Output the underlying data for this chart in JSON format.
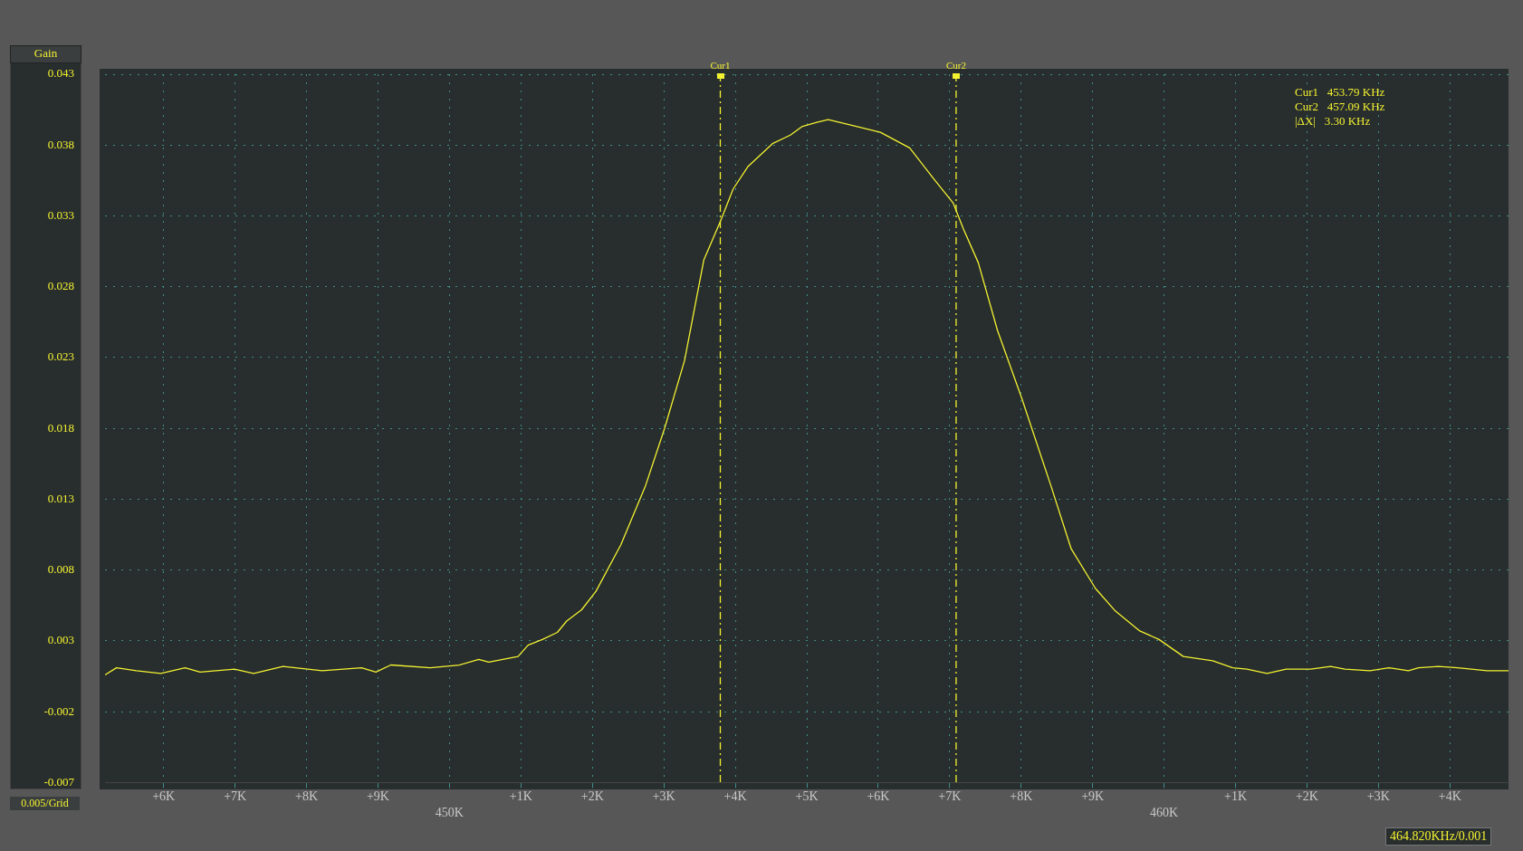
{
  "chart_data": {
    "type": "line",
    "ylabel": "Gain",
    "x": [
      445180,
      445340,
      445620,
      445960,
      446300,
      446510,
      446990,
      447260,
      447670,
      448220,
      448770,
      448970,
      449180,
      449730,
      450140,
      450410,
      450550,
      450960,
      451100,
      451300,
      451510,
      451640,
      451850,
      452050,
      452400,
      452740,
      453010,
      453290,
      453560,
      453790,
      453970,
      454180,
      454520,
      454770,
      454930,
      455140,
      455300,
      455550,
      456030,
      456440,
      456780,
      457050,
      457190,
      457400,
      457670,
      458010,
      458420,
      458700,
      459040,
      459320,
      459660,
      459930,
      460270,
      460680,
      460960,
      461160,
      461440,
      461710,
      462050,
      462330,
      462530,
      462880,
      463150,
      463420,
      463560,
      463840,
      464110,
      464520,
      464820
    ],
    "series": [
      {
        "color": "#f2f230",
        "values": [
          0.0006,
          0.0011,
          0.0009,
          0.0007,
          0.0011,
          0.0008,
          0.001,
          0.0007,
          0.0012,
          0.0009,
          0.0011,
          0.0008,
          0.0013,
          0.0011,
          0.0013,
          0.0017,
          0.0015,
          0.0019,
          0.0027,
          0.0031,
          0.0036,
          0.0044,
          0.0052,
          0.0065,
          0.0098,
          0.0139,
          0.018,
          0.0228,
          0.0299,
          0.0326,
          0.0349,
          0.0365,
          0.0381,
          0.0387,
          0.0393,
          0.0396,
          0.0398,
          0.0395,
          0.0389,
          0.0378,
          0.0356,
          0.0339,
          0.0321,
          0.0297,
          0.0249,
          0.0201,
          0.0139,
          0.0095,
          0.0067,
          0.0051,
          0.0037,
          0.0031,
          0.0019,
          0.0016,
          0.0011,
          0.001,
          0.0007,
          0.001,
          0.001,
          0.0012,
          0.001,
          0.0009,
          0.0011,
          0.0009,
          0.0011,
          0.0012,
          0.0011,
          0.0009,
          0.0009
        ]
      }
    ],
    "xlim": [
      445180,
      464820
    ],
    "xticks": [
      {
        "value": 446000,
        "label": null
      },
      {
        "value": 447000,
        "label": null
      },
      {
        "value": 448000,
        "label": null
      },
      {
        "value": 449000,
        "label": null
      },
      {
        "value": 450000,
        "label": "450K"
      },
      {
        "value": 451000,
        "label": null
      },
      {
        "value": 452000,
        "label": null
      },
      {
        "value": 453000,
        "label": null
      },
      {
        "value": 454000,
        "label": null
      },
      {
        "value": 455000,
        "label": null
      },
      {
        "value": 456000,
        "label": null
      },
      {
        "value": 457000,
        "label": null
      },
      {
        "value": 458000,
        "label": null
      },
      {
        "value": 459000,
        "label": null
      },
      {
        "value": 460000,
        "label": "460K"
      },
      {
        "value": 461000,
        "label": null
      },
      {
        "value": 462000,
        "label": null
      },
      {
        "value": 463000,
        "label": null
      },
      {
        "value": 464000,
        "label": null
      }
    ],
    "ylim": [
      -0.007,
      0.043
    ],
    "yticks": [
      -0.007,
      -0.002,
      0.003,
      0.008,
      0.013,
      0.018,
      0.023,
      0.028,
      0.033,
      0.038,
      0.043
    ],
    "grid": true,
    "legend": false,
    "marker": "none",
    "line_style": "solid",
    "ref_lines": [
      {
        "axis": "x",
        "value": 453790,
        "label": "Cur1",
        "color": "#f2f230",
        "line_style": "dashed"
      },
      {
        "axis": "x",
        "value": 457090,
        "label": "Cur2",
        "color": "#f2f230",
        "line_style": "dashed"
      }
    ],
    "annotations": [
      "Cur1   453.79 KHz",
      "Cur2   457.09 KHz",
      "|ΔX|   3.30 KHz",
      "0.005/Grid",
      "464.820KHz/0.001",
      "+6K",
      "+7K",
      "+8K",
      "+9K",
      "+1K",
      "+2K",
      "+3K",
      "+4K",
      "+5K",
      "+6K",
      "+7K",
      "+8K",
      "+9K",
      "+1K",
      "+2K",
      "+3K",
      "+4K"
    ]
  }
}
